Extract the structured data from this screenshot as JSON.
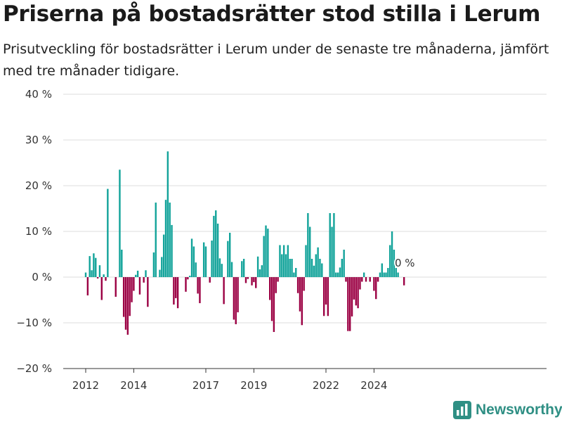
{
  "title": "Priserna på bostadsrätter stod stilla i Lerum",
  "subtitle": "Prisutveckling för bostadsrätter i Lerum under de senaste tre månaderna, jämfört med tre månader tidigare.",
  "brand": "Newsworthy",
  "colors": {
    "positive": "#12a39a",
    "negative": "#9b0043",
    "grid": "#dddddd",
    "brand": "#2f8f84"
  },
  "chart_data": {
    "type": "bar",
    "title": "Priserna på bostadsrätter stod stilla i Lerum",
    "subtitle": "Prisutveckling för bostadsrätter i Lerum under de senaste tre månaderna, jämfört med tre månader tidigare.",
    "xlabel": "",
    "ylabel": "",
    "x_start": "2012-01",
    "x_end": "2024-09",
    "ylim": [
      -20,
      40
    ],
    "y_ticks": [
      40,
      30,
      20,
      10,
      0,
      -10,
      -20
    ],
    "y_tick_labels": [
      "40 %",
      "30 %",
      "20 %",
      "10 %",
      "0 %",
      "−10 %",
      "−20 %"
    ],
    "x_ticks": [
      2012,
      2014,
      2017,
      2019,
      2022,
      2024
    ],
    "x_tick_labels": [
      "2012",
      "2014",
      "2017",
      "2019",
      "2022",
      "2024"
    ],
    "grid": true,
    "last_value_label": "0 %",
    "values": [
      1,
      -4,
      4.6,
      1.5,
      5.2,
      4.2,
      -0.3,
      2.6,
      -5,
      0.6,
      -0.8,
      19.3,
      0,
      0,
      0,
      -4.3,
      0,
      23.5,
      6,
      -8.7,
      -11.5,
      -12.6,
      -8.5,
      -5.5,
      -3,
      0.5,
      1.4,
      -3.8,
      0,
      -1.2,
      1.5,
      -6.5,
      0,
      0,
      5.4,
      16.3,
      0,
      1.6,
      4.4,
      9.3,
      16.9,
      27.5,
      16.3,
      11.4,
      -6,
      -4.6,
      -6.8,
      0,
      0,
      0,
      -3.2,
      -0.5,
      0.3,
      8.4,
      6.7,
      3.2,
      -3.6,
      -5.7,
      0,
      7.6,
      6.7,
      0,
      -1.2,
      8,
      13.4,
      14.6,
      11.7,
      4.1,
      2.9,
      -5.9,
      0,
      7.9,
      9.7,
      3.3,
      -9.3,
      -10.3,
      -7.7,
      0,
      3.5,
      4,
      -1.3,
      -0.4,
      0,
      -1.8,
      -1.1,
      -2.4,
      4.5,
      1.7,
      2.6,
      9,
      11.3,
      10.6,
      -5,
      -9.6,
      -12,
      -3.5,
      -1,
      7,
      5,
      7,
      5,
      7,
      4,
      4,
      1,
      2,
      -3.5,
      -7.5,
      -10.5,
      -3,
      7,
      14,
      11,
      4,
      2.5,
      5,
      6.5,
      4,
      3,
      -8.5,
      -6,
      -8.5,
      14,
      11,
      14,
      1,
      1,
      2.1,
      4,
      6,
      -1,
      -11.8,
      -11.8,
      -8.6,
      -4.9,
      -6.2,
      -6.8,
      -2.7,
      -1,
      1,
      -1,
      0,
      -1,
      0,
      -3,
      -4.8,
      -1,
      1,
      3,
      1,
      1,
      2,
      7,
      10,
      6,
      2,
      1,
      0,
      0,
      -1.8,
      0
    ]
  }
}
